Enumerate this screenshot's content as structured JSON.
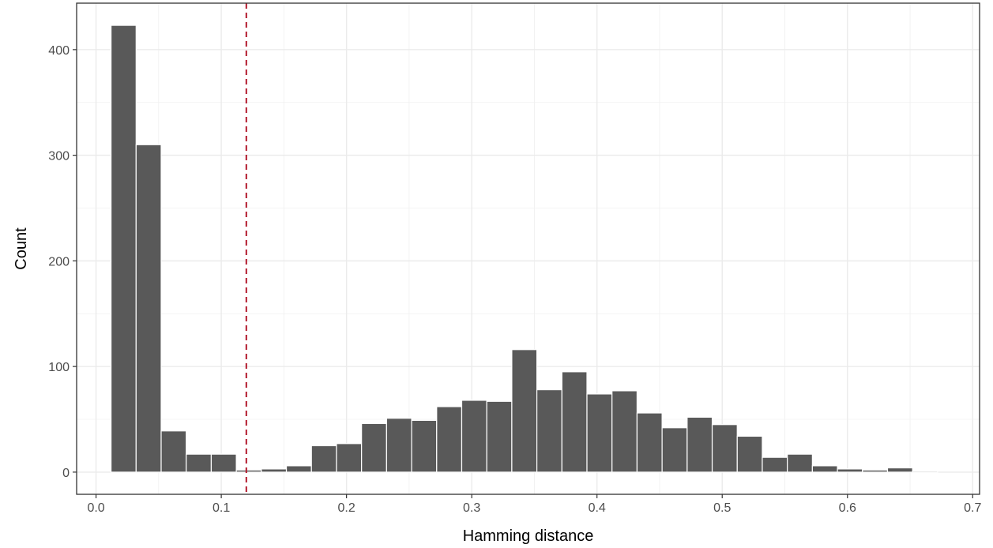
{
  "chart_data": {
    "type": "bar",
    "title": "",
    "xlabel": "Hamming distance",
    "ylabel": "Count",
    "xlim": [
      -0.0155,
      0.7055
    ],
    "ylim": [
      -21,
      444
    ],
    "x_ticks": [
      0.0,
      0.1,
      0.2,
      0.3,
      0.4,
      0.5,
      0.6,
      0.7
    ],
    "x_tick_labels": [
      "0.0",
      "0.1",
      "0.2",
      "0.3",
      "0.4",
      "0.5",
      "0.6",
      "0.7"
    ],
    "y_ticks": [
      0,
      100,
      200,
      300,
      400
    ],
    "y_tick_labels": [
      "0",
      "100",
      "200",
      "300",
      "400"
    ],
    "grid": true,
    "bin_width": 0.02,
    "bin_centers": [
      0.022,
      0.042,
      0.062,
      0.082,
      0.102,
      0.122,
      0.142,
      0.162,
      0.182,
      0.202,
      0.222,
      0.242,
      0.262,
      0.282,
      0.302,
      0.322,
      0.342,
      0.362,
      0.382,
      0.402,
      0.422,
      0.442,
      0.462,
      0.482,
      0.502,
      0.522,
      0.542,
      0.562,
      0.582,
      0.602,
      0.622,
      0.642,
      0.662
    ],
    "values": [
      423,
      310,
      39,
      17,
      17,
      2,
      3,
      6,
      25,
      27,
      46,
      51,
      49,
      62,
      68,
      67,
      116,
      78,
      95,
      74,
      77,
      56,
      42,
      52,
      45,
      34,
      14,
      17,
      6,
      3,
      2,
      4,
      1
    ],
    "bar_color": "#595959",
    "reference_line": {
      "x": 0.12,
      "color": "#b2182b",
      "style": "dashed"
    }
  }
}
